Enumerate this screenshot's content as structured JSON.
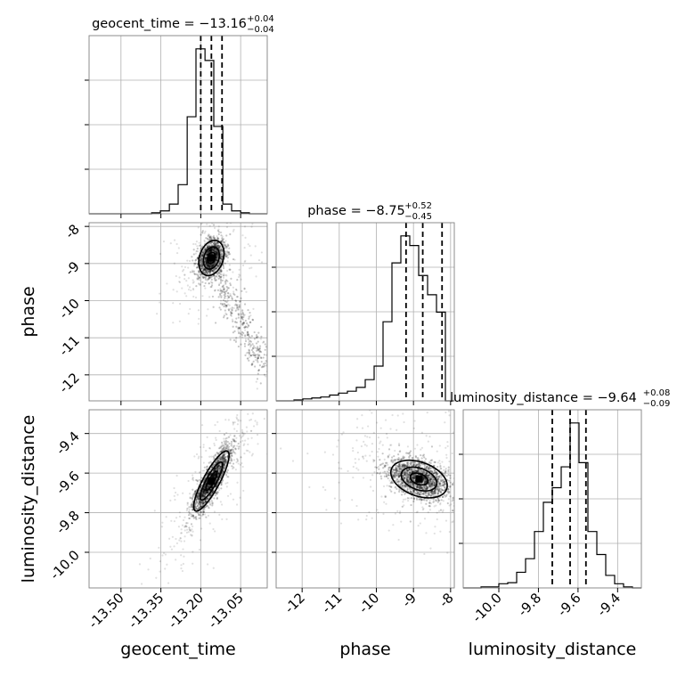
{
  "chart_data": {
    "type": "corner",
    "parameters": [
      "geocent_time",
      "phase",
      "luminosity_distance"
    ],
    "axis_labels": {
      "geocent_time": "geocent_time",
      "phase": "phase",
      "luminosity_distance": "luminosity_distance"
    },
    "ranges": {
      "geocent_time": [
        -13.62,
        -12.95
      ],
      "phase": [
        -12.7,
        -7.9
      ],
      "luminosity_distance": [
        -10.18,
        -9.28
      ]
    },
    "ticks": {
      "geocent_time": [
        "-13.50",
        "-13.35",
        "-13.20",
        "-13.05"
      ],
      "phase": [
        "-12",
        "-11",
        "-10",
        "-9",
        "-8"
      ],
      "luminosity_distance": [
        "-10.0",
        "-9.8",
        "-9.6",
        "-9.4"
      ]
    },
    "tick_values": {
      "geocent_time": [
        -13.5,
        -13.35,
        -13.2,
        -13.05
      ],
      "phase": [
        -12,
        -11,
        -10,
        -9,
        -8
      ],
      "luminosity_distance": [
        -10.0,
        -9.8,
        -9.6,
        -9.4
      ]
    },
    "titles": [
      {
        "param": "geocent_time",
        "text": "geocent_time = −13.16",
        "plus": "+0.04",
        "minus": "−0.04"
      },
      {
        "param": "phase",
        "text": "phase = −8.75",
        "plus": "+0.52",
        "minus": "−0.45"
      },
      {
        "param": "luminosity_distance",
        "text": "luminosity_distance = −9.64",
        "plus": "+0.08",
        "minus": "−0.09"
      }
    ],
    "histograms": {
      "geocent_time": {
        "bins": [
          -13.62,
          -13.586,
          -13.553,
          -13.519,
          -13.486,
          -13.452,
          -13.419,
          -13.385,
          -13.352,
          -13.318,
          -13.285,
          -13.251,
          -13.218,
          -13.184,
          -13.151,
          -13.117,
          -13.084,
          -13.05,
          -13.017,
          -12.983,
          -12.95
        ],
        "counts": [
          0,
          0,
          0,
          0,
          0,
          0,
          0,
          1,
          3,
          10,
          30,
          100,
          170,
          158,
          90,
          10,
          3,
          1,
          0,
          0
        ],
        "quantiles": [
          -13.2,
          -13.16,
          -13.12
        ]
      },
      "phase": {
        "bins": [
          -12.7,
          -12.46,
          -12.22,
          -11.98,
          -11.74,
          -11.5,
          -11.26,
          -11.02,
          -10.78,
          -10.54,
          -10.3,
          -10.06,
          -9.82,
          -9.58,
          -9.34,
          -9.1,
          -8.86,
          -8.62,
          -8.38,
          -8.14,
          -7.9
        ],
        "counts": [
          0,
          0,
          1,
          2,
          3,
          4,
          6,
          8,
          10,
          14,
          22,
          36,
          82,
          143,
          171,
          161,
          130,
          110,
          92,
          0
        ],
        "quantiles": [
          -9.2,
          -8.75,
          -8.23
        ]
      },
      "luminosity_distance": {
        "bins": [
          -10.18,
          -10.135,
          -10.09,
          -10.045,
          -10.0,
          -9.955,
          -9.91,
          -9.865,
          -9.82,
          -9.775,
          -9.73,
          -9.685,
          -9.64,
          -9.595,
          -9.55,
          -9.505,
          -9.46,
          -9.415,
          -9.37,
          -9.325,
          -9.28
        ],
        "counts": [
          0,
          0,
          1,
          1,
          4,
          5,
          15,
          28,
          54,
          82,
          96,
          116,
          158,
          120,
          54,
          32,
          12,
          4,
          1,
          0
        ],
        "quantiles": [
          -9.73,
          -9.64,
          -9.56
        ]
      }
    },
    "scatter_2d": [
      {
        "x": "geocent_time",
        "y": "phase",
        "center": [
          -13.16,
          -8.85
        ],
        "spread": [
          0.025,
          0.25
        ],
        "rho": 0.25
      },
      {
        "x": "geocent_time",
        "y": "luminosity_distance",
        "center": [
          -13.16,
          -9.64
        ],
        "spread": [
          0.035,
          0.08
        ],
        "rho": 0.85
      },
      {
        "x": "phase",
        "y": "luminosity_distance",
        "center": [
          -8.85,
          -9.63
        ],
        "spread": [
          0.4,
          0.05
        ],
        "rho": -0.35
      }
    ],
    "grid": true
  }
}
